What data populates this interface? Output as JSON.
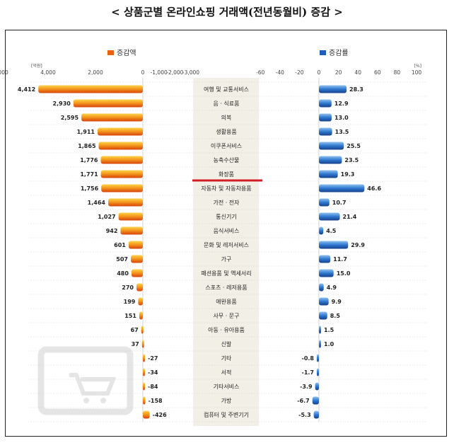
{
  "title": "< 상품군별 온라인쇼핑 거래액(전년동월비) 증감 >",
  "chart_data": [
    {
      "type": "bar",
      "orientation": "horizontal",
      "legend": "증감액",
      "unit": "[억원]",
      "ylim": [
        -3000,
        6000
      ],
      "ticks": [
        "6,000",
        "4,000",
        "2,000",
        "0",
        "-1,000",
        "-2,000",
        "-3,000"
      ],
      "bar_color": "#e8620f",
      "categories": [
        "여행 및 교통서비스",
        "음 · 식료품",
        "의복",
        "생활용품",
        "이쿠폰서비스",
        "농축수산물",
        "화장품",
        "자동차 및 자동차용품",
        "가전 · 전자",
        "통신기기",
        "음식서비스",
        "문화 및 레저서비스",
        "가구",
        "패션용품 및 액세서리",
        "스포츠 · 레저용품",
        "애완용품",
        "사무 · 문구",
        "아동 · 유아용품",
        "신발",
        "기타",
        "서적",
        "기타서비스",
        "가방",
        "컴퓨터 및 주변기기"
      ],
      "values": [
        4412,
        2930,
        2595,
        1911,
        1865,
        1776,
        1771,
        1756,
        1464,
        1027,
        942,
        601,
        507,
        480,
        270,
        199,
        151,
        67,
        37,
        -27,
        -34,
        -84,
        -158,
        -426
      ],
      "labels": [
        "4,412",
        "2,930",
        "2,595",
        "1,911",
        "1,865",
        "1,776",
        "1,771",
        "1,756",
        "1,464",
        "1,027",
        "942",
        "601",
        "507",
        "480",
        "270",
        "199",
        "151",
        "67",
        "37",
        "-27",
        "-34",
        "-84",
        "-158",
        "-426"
      ]
    },
    {
      "type": "bar",
      "orientation": "horizontal",
      "legend": "증감률",
      "unit": "[%]",
      "ylim": [
        -60,
        100
      ],
      "ticks": [
        "-60",
        "-40",
        "-20",
        "0",
        "20",
        "40",
        "60",
        "80",
        "100"
      ],
      "bar_color": "#1f5fb8",
      "values": [
        28.3,
        12.9,
        13.0,
        13.5,
        25.5,
        23.5,
        19.3,
        46.6,
        10.7,
        21.4,
        4.5,
        29.9,
        11.7,
        15.0,
        4.9,
        9.9,
        8.5,
        1.5,
        1.0,
        -0.8,
        -1.7,
        -3.9,
        -6.7,
        -5.3
      ],
      "labels": [
        "28.3",
        "12.9",
        "13.0",
        "13.5",
        "25.5",
        "23.5",
        "19.3",
        "46.6",
        "10.7",
        "21.4",
        "4.5",
        "29.9",
        "11.7",
        "15.0",
        "4.9",
        "9.9",
        "8.5",
        "1.5",
        "1.0",
        "-0.8",
        "-1.7",
        "-3.9",
        "-6.7",
        "-5.3"
      ]
    }
  ],
  "highlight_category": "화장품"
}
